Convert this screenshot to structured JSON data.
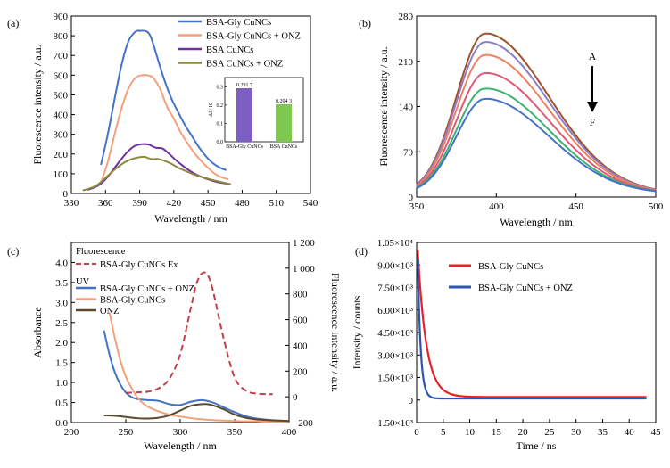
{
  "chart_data": [
    {
      "panel": "(a)",
      "type": "line",
      "xlabel": "Wavelength / nm",
      "ylabel": "Fluorescence intensity / a.u.",
      "xlim": [
        330,
        540
      ],
      "ylim": [
        0,
        900
      ],
      "xticks": [
        330,
        360,
        390,
        420,
        450,
        480,
        510,
        540
      ],
      "yticks": [
        0,
        100,
        200,
        300,
        400,
        500,
        600,
        700,
        800,
        900
      ],
      "legend": "top-right",
      "series": [
        {
          "name": "BSA-Gly CuNCs",
          "color": "#4472c4",
          "x": [
            356,
            362,
            368,
            374,
            380,
            386,
            390,
            396,
            400,
            406,
            412,
            418,
            424,
            430,
            436,
            442,
            448,
            454,
            460,
            466
          ],
          "y": [
            145,
            300,
            480,
            650,
            770,
            820,
            825,
            822,
            790,
            680,
            570,
            480,
            410,
            345,
            290,
            235,
            190,
            155,
            132,
            118
          ]
        },
        {
          "name": "BSA-Gly CuNCs + ONZ",
          "color": "#f4a07a",
          "x": [
            356,
            362,
            368,
            374,
            380,
            386,
            392,
            398,
            402,
            408,
            414,
            420,
            426,
            432,
            438,
            444,
            450,
            456,
            462,
            468
          ],
          "y": [
            55,
            160,
            300,
            430,
            530,
            585,
            600,
            598,
            585,
            530,
            440,
            380,
            310,
            255,
            205,
            165,
            130,
            100,
            82,
            72
          ]
        },
        {
          "name": "BSA CuNCs",
          "color": "#7030a0",
          "x": [
            344,
            350,
            356,
            362,
            368,
            374,
            380,
            386,
            392,
            398,
            404,
            410,
            416,
            422,
            428,
            434,
            440,
            446,
            452,
            458,
            464,
            470
          ],
          "y": [
            18,
            30,
            50,
            85,
            130,
            175,
            215,
            242,
            250,
            248,
            232,
            228,
            200,
            168,
            140,
            115,
            95,
            80,
            68,
            58,
            52,
            47
          ]
        },
        {
          "name": "BSA CuNCs + ONZ",
          "color": "#8b8a3a",
          "x": [
            340,
            346,
            352,
            358,
            364,
            370,
            376,
            382,
            388,
            394,
            400,
            406,
            412,
            418,
            424,
            430,
            436,
            442,
            448,
            454,
            460,
            466,
            470
          ],
          "y": [
            15,
            25,
            40,
            68,
            100,
            130,
            155,
            172,
            182,
            186,
            175,
            175,
            165,
            150,
            130,
            115,
            100,
            88,
            78,
            68,
            60,
            52,
            47
          ]
        }
      ],
      "inset": {
        "type": "bar",
        "ylabel": "ΔI / I0",
        "categories": [
          "BSA-Gly CuNCs",
          "BSA CuNCs"
        ],
        "values": [
          0.2917,
          0.2043
        ],
        "labels": [
          "0.291 7",
          "0.204 3"
        ],
        "yticks": [
          0.0,
          0.1,
          0.2,
          0.3
        ],
        "ylim": [
          0,
          0.35
        ],
        "colors": [
          "#7b5fc2",
          "#7ec850"
        ]
      }
    },
    {
      "panel": "(b)",
      "type": "line",
      "xlabel": "Wavelength / nm",
      "ylabel": "Fluorescence intensity / a.u.",
      "xlim": [
        350,
        500
      ],
      "ylim": [
        0,
        280
      ],
      "xticks": [
        350,
        400,
        450,
        500
      ],
      "yticks": [
        0,
        70,
        140,
        210,
        280
      ],
      "annotation": {
        "top": "A",
        "bottom": "F"
      },
      "peak_x": 393,
      "series": [
        {
          "color": "#a0522d",
          "peak": 248
        },
        {
          "color": "#8a7fc8",
          "peak": 235
        },
        {
          "color": "#f08060",
          "peak": 215
        },
        {
          "color": "#e05a78",
          "peak": 187
        },
        {
          "color": "#3cb371",
          "peak": 163
        },
        {
          "color": "#4472c4",
          "peak": 147
        }
      ]
    },
    {
      "panel": "(c)",
      "type": "line",
      "xlabel": "Wavelength / nm",
      "ylabel": "Absorbance",
      "ylabel_right": "Fluorescence intensity / a.u.",
      "xlim": [
        200,
        400
      ],
      "ylim": [
        0.0,
        4.5
      ],
      "ylim_right": [
        -200,
        1200
      ],
      "xticks": [
        200,
        250,
        300,
        350,
        400
      ],
      "yticks": [
        0.0,
        0.5,
        1.0,
        1.5,
        2.0,
        2.5,
        3.0,
        3.5,
        4.0
      ],
      "yticks_right": [
        -200,
        0,
        200,
        400,
        600,
        800,
        1000,
        1200
      ],
      "ytick_labels_right": [
        "−200",
        "0",
        "200",
        "400",
        "600",
        "800",
        "1 000",
        "1 200"
      ],
      "legend_headers": [
        "Fluorescence",
        "UV"
      ],
      "fluorescence_series": {
        "name": "BSA-Gly CuNCs Ex",
        "color": "#c0404a",
        "dashed": true,
        "x": [
          250,
          260,
          270,
          280,
          290,
          300,
          310,
          315,
          320,
          325,
          330,
          340,
          350,
          360,
          370,
          385
        ],
        "y": [
          30,
          35,
          40,
          65,
          140,
          330,
          700,
          880,
          960,
          950,
          830,
          450,
          150,
          50,
          25,
          20
        ]
      },
      "uv_series": [
        {
          "name": "BSA-Gly CuNCs + ONZ",
          "color": "#4472c4",
          "x": [
            230,
            235,
            240,
            245,
            250,
            255,
            260,
            265,
            270,
            280,
            290,
            300,
            310,
            320,
            330,
            340,
            350,
            360,
            370,
            380,
            390,
            400
          ],
          "y": [
            2.3,
            1.7,
            1.25,
            0.95,
            0.75,
            0.64,
            0.59,
            0.57,
            0.56,
            0.54,
            0.46,
            0.44,
            0.52,
            0.56,
            0.5,
            0.38,
            0.26,
            0.16,
            0.1,
            0.07,
            0.05,
            0.04
          ]
        },
        {
          "name": "BSA-Gly CuNCs",
          "color": "#f4a07a",
          "x": [
            235,
            240,
            245,
            250,
            255,
            260,
            265,
            270,
            280,
            290,
            300,
            310,
            320,
            330,
            340,
            350,
            360,
            370,
            380,
            390,
            400
          ],
          "y": [
            2.75,
            2.1,
            1.55,
            1.15,
            0.88,
            0.65,
            0.5,
            0.4,
            0.28,
            0.2,
            0.15,
            0.11,
            0.08,
            0.06,
            0.05,
            0.04,
            0.03,
            0.03,
            0.02,
            0.02,
            0.02
          ]
        },
        {
          "name": "ONZ",
          "color": "#5c4a2e",
          "x": [
            230,
            240,
            250,
            260,
            270,
            280,
            290,
            300,
            310,
            320,
            325,
            330,
            340,
            350,
            360,
            370,
            380,
            390,
            400
          ],
          "y": [
            0.18,
            0.17,
            0.14,
            0.11,
            0.1,
            0.12,
            0.18,
            0.3,
            0.42,
            0.46,
            0.46,
            0.43,
            0.33,
            0.2,
            0.12,
            0.08,
            0.06,
            0.05,
            0.04
          ]
        }
      ]
    },
    {
      "panel": "(d)",
      "type": "line",
      "xlabel": "Time / ns",
      "ylabel": "Intensity / counts",
      "xlim": [
        0,
        45
      ],
      "ylim": [
        -1500,
        10500
      ],
      "xticks": [
        0,
        5,
        10,
        15,
        20,
        25,
        30,
        35,
        40,
        45
      ],
      "yticks": [
        -1500,
        0,
        1500,
        3000,
        4500,
        6000,
        7500,
        9000,
        10500
      ],
      "ytick_labels": [
        "−1.50×10³",
        "0",
        "1.50×10³",
        "3.00×10³",
        "4.50×10³",
        "6.00×10³",
        "7.50×10³",
        "9.00×10³",
        "1.05×10⁴"
      ],
      "legend": "top-right",
      "series": [
        {
          "name": "BSA-Gly CuNCs",
          "color": "#e8202a",
          "x_start": 0.2,
          "x_end": 43.5,
          "peak": 9800,
          "tau": 1.6,
          "baseline": 200
        },
        {
          "name": "BSA-Gly CuNCs + ONZ",
          "color": "#2a55b0",
          "x_start": 0.2,
          "x_end": 43.5,
          "peak": 9300,
          "tau": 0.55,
          "baseline": 100
        }
      ]
    }
  ]
}
